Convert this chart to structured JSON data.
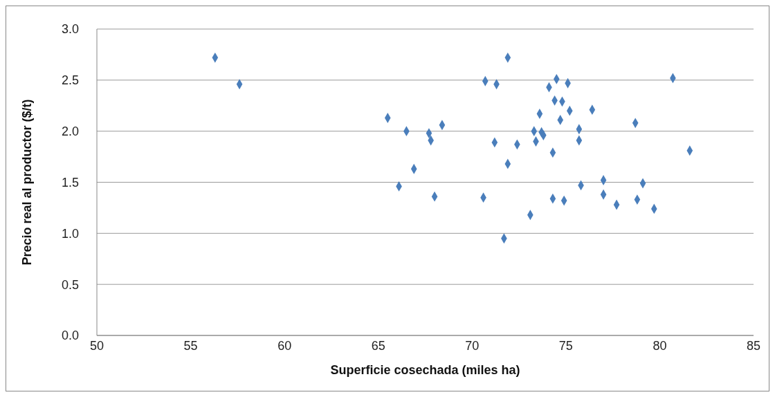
{
  "chart_data": {
    "type": "scatter",
    "xlabel": "Superficie cosechada (miles ha)",
    "ylabel": "Precio real al productor ($/t)",
    "xlim": [
      50,
      85
    ],
    "xticks": [
      50,
      55,
      60,
      65,
      70,
      75,
      80,
      85
    ],
    "ylim": [
      0,
      3
    ],
    "yticks": [
      {
        "value": 0,
        "label": "0.0"
      },
      {
        "value": 0.5,
        "label": "0.5"
      },
      {
        "value": 1,
        "label": "1.0"
      },
      {
        "value": 1.5,
        "label": "1.5"
      },
      {
        "value": 2,
        "label": "2.0"
      },
      {
        "value": 2.5,
        "label": "2.5"
      },
      {
        "value": 3,
        "label": "3.0"
      }
    ],
    "grid": "y",
    "marker": "diamond",
    "series": [
      {
        "color": "#4a7ebb",
        "x": [
          56.3,
          57.6,
          65.5,
          66.5,
          67.7,
          67.8,
          68.4,
          66.9,
          66.1,
          68.0,
          70.7,
          71.3,
          71.9,
          71.2,
          72.4,
          71.9,
          70.6,
          71.7,
          73.1,
          73.6,
          73.3,
          73.7,
          73.4,
          73.8,
          74.1,
          74.5,
          75.1,
          74.4,
          74.8,
          75.2,
          76.4,
          74.7,
          78.7,
          75.7,
          75.7,
          74.3,
          81.6,
          80.7,
          75.8,
          77.0,
          79.1,
          74.3,
          74.9,
          77.0,
          77.7,
          78.8,
          79.7
        ],
        "values": [
          2.72,
          2.46,
          2.13,
          2.0,
          1.98,
          1.91,
          2.06,
          1.63,
          1.46,
          1.36,
          2.49,
          2.46,
          2.72,
          1.89,
          1.87,
          1.68,
          1.35,
          0.95,
          1.18,
          2.17,
          2.0,
          1.99,
          1.9,
          1.96,
          2.43,
          2.51,
          2.47,
          2.3,
          2.29,
          2.2,
          2.21,
          2.11,
          2.08,
          2.02,
          1.91,
          1.79,
          1.81,
          2.52,
          1.47,
          1.52,
          1.49,
          1.34,
          1.32,
          1.38,
          1.28,
          1.33,
          1.24
        ]
      }
    ]
  }
}
